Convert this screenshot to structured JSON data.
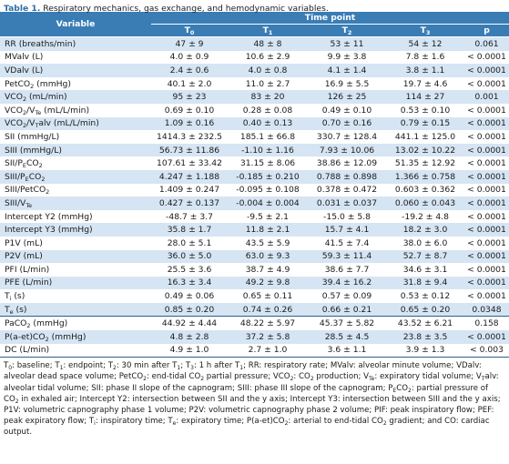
{
  "title": {
    "label": "Table 1.",
    "text": "Respiratory mechanics, gas exchange, and hemodynamic variables."
  },
  "table": {
    "header": [
      "Variable",
      "Time point"
    ],
    "columns": [
      [
        "T",
        {
          "sub": "0"
        }
      ],
      [
        "T",
        {
          "sub": "1"
        }
      ],
      [
        "T",
        {
          "sub": "2"
        }
      ],
      [
        "T",
        {
          "sub": "3"
        }
      ],
      "p"
    ],
    "sections": [
      {
        "rows": [
          [
            "RR (breaths/min)",
            "47 ± 9",
            "48 ± 8",
            "53 ± 11",
            "54 ± 12",
            "0.061"
          ],
          [
            "MValv (L)",
            "4.0 ± 0.9",
            "10.6 ± 2.9",
            "9.9 ± 3.8",
            "7.8 ± 1.6",
            "< 0.0001"
          ],
          [
            "VDalv (L)",
            "2.4 ± 0.6",
            "4.0 ± 0.8",
            "4.1 ± 1.4",
            "3.8 ± 1.1",
            "< 0.0001"
          ],
          [
            [
              "PetCO",
              {
                "sub": "2"
              },
              " (mmHg)"
            ],
            "40.1 ± 2.0",
            "11.0 ± 2.7",
            "16.9 ± 5.5",
            "19.7 ± 4.6",
            "< 0.0001"
          ],
          [
            [
              "VCO",
              {
                "sub": "2"
              },
              " (mL/min)"
            ],
            "95 ± 23",
            "83 ± 20",
            "126 ± 25",
            "114 ± 27",
            "0.001"
          ],
          [
            [
              "VCO",
              {
                "sub": "2"
              },
              "/V",
              {
                "sub": "Te"
              },
              " (mL/L/min)"
            ],
            "0.69 ± 0.10",
            "0.28 ± 0.08",
            "0.49 ± 0.10",
            "0.53 ± 0.10",
            "< 0.0001"
          ],
          [
            [
              "VCO",
              {
                "sub": "2"
              },
              "/V",
              {
                "sub": "T"
              },
              "alv (mL/L/min)"
            ],
            "1.09 ± 0.16",
            "0.40 ± 0.13",
            "0.70 ± 0.16",
            "0.79 ± 0.15",
            "< 0.0001"
          ],
          [
            "SII (mmHg/L)",
            "1414.3 ± 232.5",
            "185.1 ± 66.8",
            "330.7 ± 128.4",
            "441.1 ± 125.0",
            "< 0.0001"
          ],
          [
            "SIII (mmHg/L)",
            "56.73 ± 11.86",
            "-1.10 ± 1.16",
            "7.93 ± 10.06",
            "13.02 ± 10.22",
            "< 0.0001"
          ],
          [
            [
              "SII/P",
              {
                "sub": "E"
              },
              "CO",
              {
                "sub": "2"
              }
            ],
            "107.61 ± 33.42",
            "31.15 ± 8.06",
            "38.86 ± 12.09",
            "51.35 ± 12.92",
            "< 0.0001"
          ],
          [
            [
              "SIII/P",
              {
                "sub": "E"
              },
              "CO",
              {
                "sub": "2"
              }
            ],
            "4.247 ± 1.188",
            "-0.185 ± 0.210",
            "0.788 ± 0.898",
            "1.366 ± 0.758",
            "< 0.0001"
          ],
          [
            [
              "SIII/PetCO",
              {
                "sub": "2"
              }
            ],
            "1.409 ± 0.247",
            "-0.095 ± 0.108",
            "0.378 ± 0.472",
            "0.603 ± 0.362",
            "< 0.0001"
          ],
          [
            [
              "SIII/V",
              {
                "sub": "Te"
              }
            ],
            "0.427 ± 0.137",
            "-0.004 ± 0.004",
            "0.031 ± 0.037",
            "0.060 ± 0.043",
            "< 0.0001"
          ],
          [
            "Intercept Y2 (mmHg)",
            "-48.7 ± 3.7",
            "-9.5 ± 2.1",
            "-15.0 ± 5.8",
            "-19.2 ± 4.8",
            "< 0.0001"
          ],
          [
            "Intercept Y3 (mmHg)",
            "35.8 ± 1.7",
            "11.8 ± 2.1",
            "15.7 ± 4.1",
            "18.2 ± 3.0",
            "< 0.0001"
          ],
          [
            "P1V (mL)",
            "28.0 ± 5.1",
            "43.5 ± 5.9",
            "41.5 ± 7.4",
            "38.0 ± 6.0",
            "< 0.0001"
          ],
          [
            "P2V (mL)",
            "36.0 ± 5.0",
            "63.0 ± 9.3",
            "59.3 ± 11.4",
            "52.7 ± 8.7",
            "< 0.0001"
          ],
          [
            "PFI (L/min)",
            "25.5 ± 3.6",
            "38.7 ± 4.9",
            "38.6 ± 7.7",
            "34.6 ± 3.1",
            "< 0.0001"
          ],
          [
            "PFE (L/min)",
            "16.3 ± 3.4",
            "49.2 ± 9.8",
            "39.4 ± 16.2",
            "31.8 ± 9.4",
            "< 0.0001"
          ],
          [
            [
              "T",
              {
                "sub": "i"
              },
              " (s)"
            ],
            "0.49 ± 0.06",
            "0.65 ± 0.11",
            "0.57 ± 0.09",
            "0.53 ± 0.12",
            "< 0.0001"
          ],
          [
            [
              "T",
              {
                "sub": "e"
              },
              " (s)"
            ],
            "0.85 ± 0.20",
            "0.74 ± 0.26",
            "0.66 ± 0.21",
            "0.65 ± 0.20",
            "0.0348"
          ]
        ]
      },
      {
        "rows": [
          [
            [
              "PaCO",
              {
                "sub": "2"
              },
              " (mmHg)"
            ],
            "44.92 ± 4.44",
            "48.22 ± 5.97",
            "45.37 ± 5.82",
            "43.52 ± 6.21",
            "0.158"
          ],
          [
            [
              "P(a-et)CO",
              {
                "sub": "2"
              },
              " (mmHg)"
            ],
            "4.8 ± 2.8",
            "37.2 ± 5.8",
            "28.5 ± 4.5",
            "23.8 ± 3.5",
            "< 0.0001"
          ],
          [
            "DC (L/min)",
            "4.9 ± 1.0",
            "2.7 ± 1.0",
            "3.6 ± 1.1",
            "3.9 ± 1.3",
            "< 0.003"
          ]
        ]
      }
    ]
  },
  "footnote": [
    "T",
    {
      "sub": "0"
    },
    ": baseline; T",
    {
      "sub": "1"
    },
    ": endpoint; T",
    {
      "sub": "2"
    },
    ": 30 min after T",
    {
      "sub": "1"
    },
    "; T",
    {
      "sub": "3"
    },
    ": 1 h after T",
    {
      "sub": "1"
    },
    "; RR: respiratory rate; MValv: alveolar minute volume; VDalv: alveolar dead space volume; PetCO",
    {
      "sub": "2"
    },
    ": end-tidal CO",
    {
      "sub": "2"
    },
    " partial pressure; VCO",
    {
      "sub": "2"
    },
    ": CO",
    {
      "sub": "2"
    },
    " production; V",
    {
      "sub": "Te"
    },
    ": expiratory tidal volume; V",
    {
      "sub": "T"
    },
    "alv: alveolar tidal volume; SII: phase II slope of the capnogram; SIII: phase III slope of the capnogram; P",
    {
      "sub": "E"
    },
    "CO",
    {
      "sub": "2"
    },
    ": partial pressure of CO",
    {
      "sub": "2"
    },
    " in exhaled air; Intercept Y2: intersection between SII and the y axis; Intercept Y3: intersection between SIII and the y axis; P1V: volumetric capnography phase 1 volume; P2V: volumetric capnography phase 2 volume; PIF: peak inspiratory flow; PEF: peak expiratory flow; T",
    {
      "sub": "i"
    },
    ": inspiratory time; T",
    {
      "sub": "e"
    },
    ": expiratory time; P(a-et)CO",
    {
      "sub": "2"
    },
    ": arterial to end-tidal CO",
    {
      "sub": "2"
    },
    " gradient; and CO: cardiac output."
  ]
}
